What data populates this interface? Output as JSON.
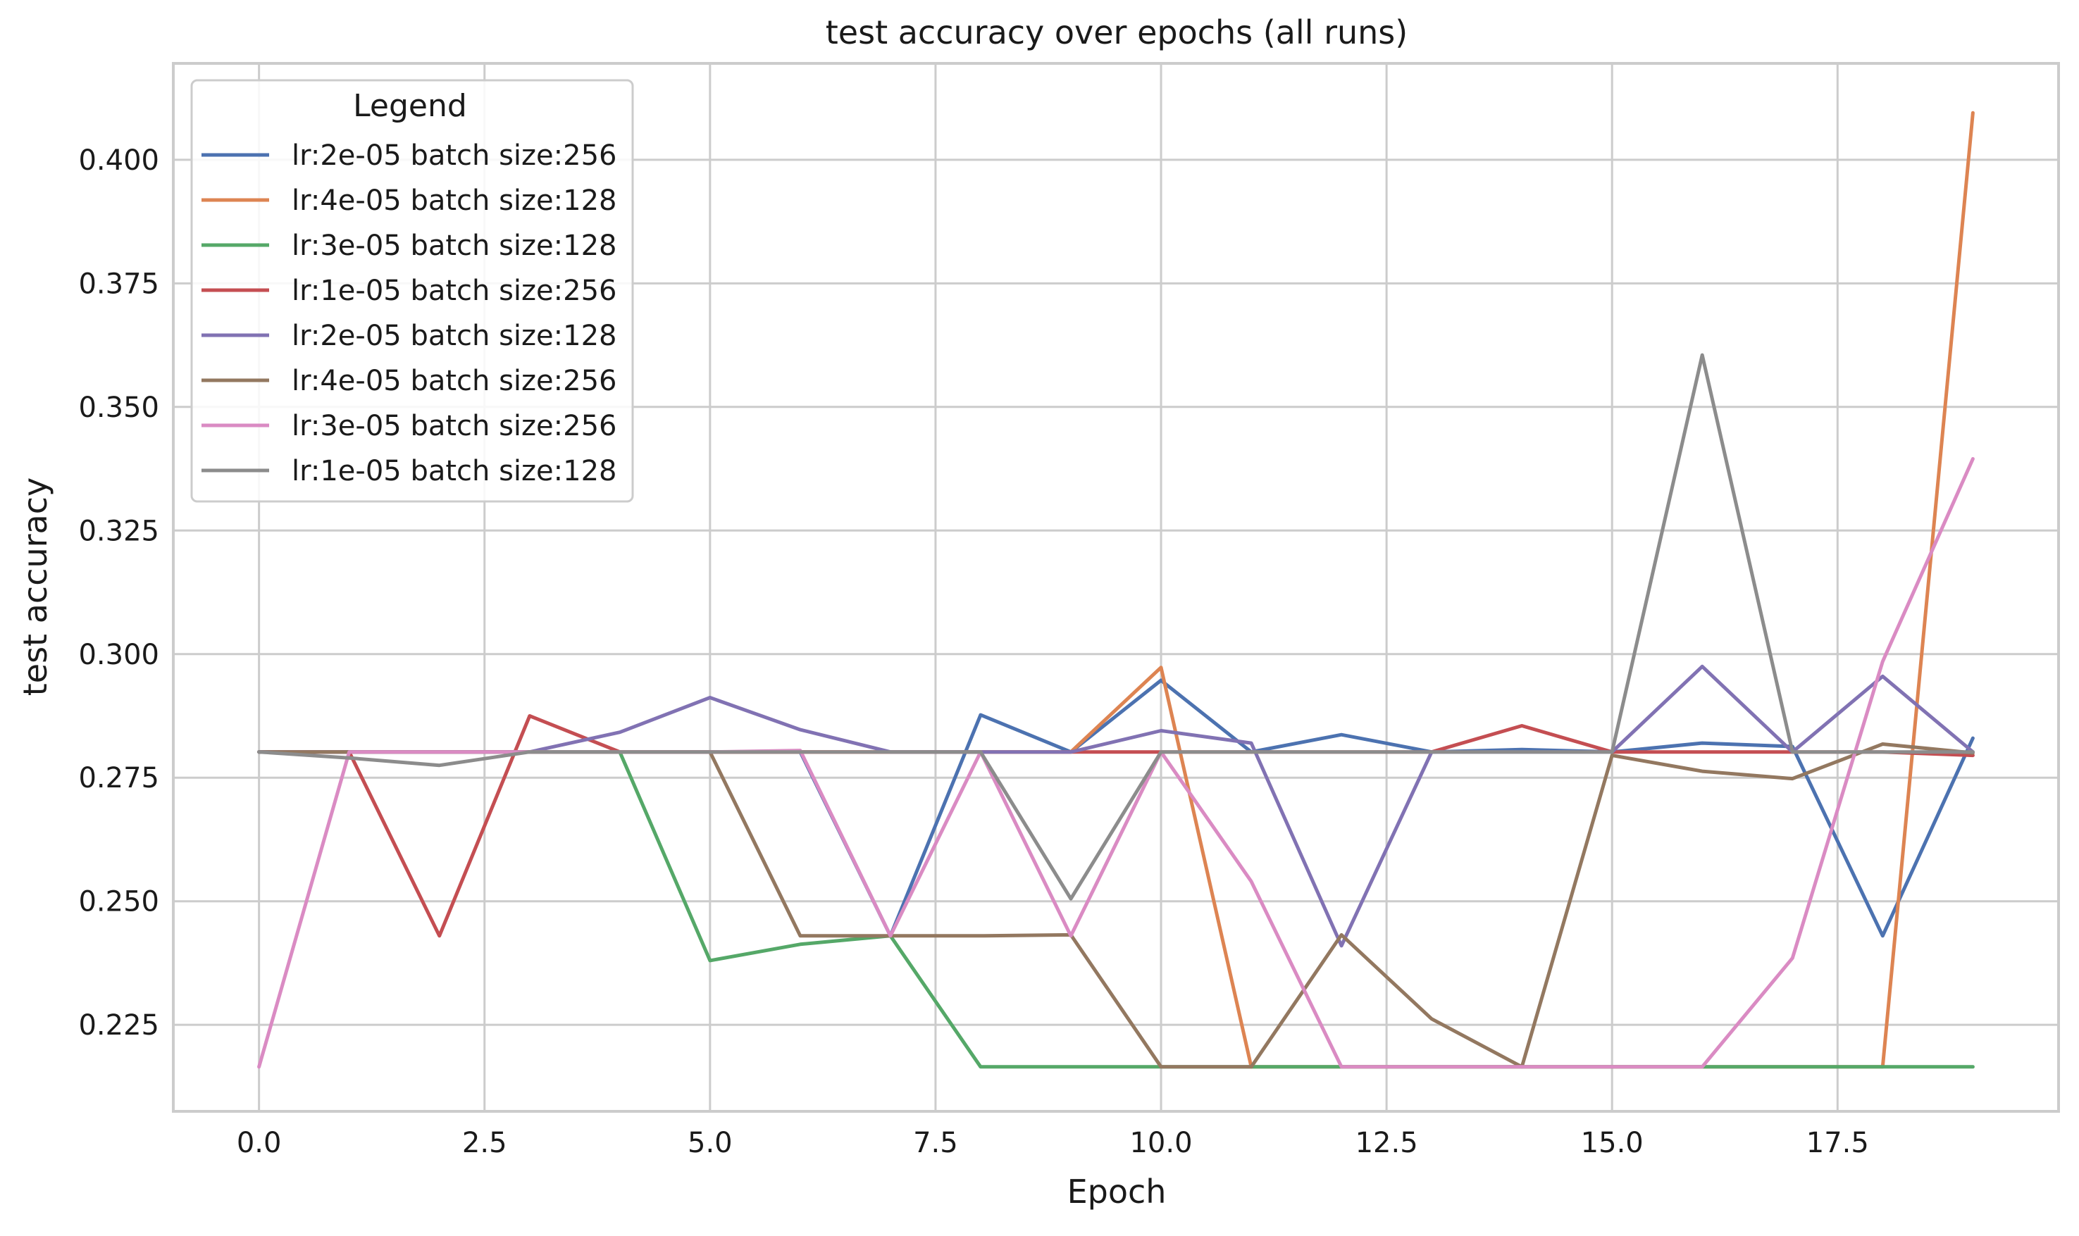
{
  "chart_data": {
    "type": "line",
    "title": "test accuracy over epochs (all runs)",
    "xlabel": "Epoch",
    "ylabel": "test accuracy",
    "xlim": [
      -0.95,
      19.95
    ],
    "ylim": [
      0.2075,
      0.4195
    ],
    "xticks": [
      0.0,
      2.5,
      5.0,
      7.5,
      10.0,
      12.5,
      15.0,
      17.5
    ],
    "xtick_labels": [
      "0.0",
      "2.5",
      "5.0",
      "7.5",
      "10.0",
      "12.5",
      "15.0",
      "17.5"
    ],
    "yticks": [
      0.225,
      0.25,
      0.275,
      0.3,
      0.325,
      0.35,
      0.375,
      0.4
    ],
    "ytick_labels": [
      "0.225",
      "0.250",
      "0.275",
      "0.300",
      "0.325",
      "0.350",
      "0.375",
      "0.400"
    ],
    "grid": true,
    "legend": {
      "title": "Legend",
      "placement": "top-left"
    },
    "x": [
      0,
      1,
      2,
      3,
      4,
      5,
      6,
      7,
      8,
      9,
      10,
      11,
      12,
      13,
      14,
      15,
      16,
      17,
      18,
      19
    ],
    "series": [
      {
        "name": "lr:2e-05 batch size:256",
        "color": "#4c72b0",
        "values": [
          0.2802,
          0.2802,
          0.2802,
          0.2802,
          0.2802,
          0.2802,
          0.2802,
          0.243,
          0.2877,
          0.2802,
          0.2947,
          0.2802,
          0.2837,
          0.2802,
          0.2807,
          0.2802,
          0.282,
          0.2813,
          0.243,
          0.283
        ]
      },
      {
        "name": "lr:4e-05 batch size:128",
        "color": "#dd8452",
        "values": [
          0.2802,
          0.2802,
          0.2802,
          0.2802,
          0.2802,
          0.2802,
          0.2802,
          0.2802,
          0.2802,
          0.2802,
          0.2973,
          0.2165,
          0.2165,
          0.2165,
          0.2165,
          0.2165,
          0.2165,
          0.2165,
          0.2165,
          0.4095
        ]
      },
      {
        "name": "lr:3e-05 batch size:128",
        "color": "#55a868",
        "values": [
          0.2802,
          0.2802,
          0.2802,
          0.2802,
          0.2802,
          0.238,
          0.2413,
          0.243,
          0.2165,
          0.2165,
          0.2165,
          0.2165,
          0.2165,
          0.2165,
          0.2165,
          0.2165,
          0.2165,
          0.2165,
          0.2165,
          0.2165
        ]
      },
      {
        "name": "lr:1e-05 batch size:256",
        "color": "#c44e52",
        "values": [
          0.2802,
          0.2802,
          0.243,
          0.2875,
          0.2802,
          0.2802,
          0.2802,
          0.2802,
          0.2802,
          0.2802,
          0.2802,
          0.2802,
          0.2802,
          0.2802,
          0.2855,
          0.2802,
          0.2802,
          0.2802,
          0.2802,
          0.2795
        ]
      },
      {
        "name": "lr:2e-05 batch size:128",
        "color": "#8172b3",
        "values": [
          0.2802,
          0.2802,
          0.2802,
          0.2802,
          0.2842,
          0.2912,
          0.2847,
          0.2802,
          0.2802,
          0.2802,
          0.2845,
          0.282,
          0.241,
          0.2802,
          0.2802,
          0.2802,
          0.2975,
          0.2802,
          0.2955,
          0.2802
        ]
      },
      {
        "name": "lr:4e-05 batch size:256",
        "color": "#937860",
        "values": [
          0.2802,
          0.2802,
          0.2802,
          0.2802,
          0.2802,
          0.2802,
          0.243,
          0.243,
          0.243,
          0.2432,
          0.2165,
          0.2165,
          0.2432,
          0.2262,
          0.2165,
          0.2795,
          0.2763,
          0.2748,
          0.2818,
          0.28
        ]
      },
      {
        "name": "lr:3e-05 batch size:256",
        "color": "#da8bc3",
        "values": [
          0.2165,
          0.2802,
          0.2802,
          0.2802,
          0.2802,
          0.2802,
          0.2805,
          0.243,
          0.2802,
          0.243,
          0.2802,
          0.254,
          0.2165,
          0.2165,
          0.2165,
          0.2165,
          0.2165,
          0.2385,
          0.2985,
          0.3395
        ]
      },
      {
        "name": "lr:1e-05 batch size:128",
        "color": "#8c8c8c",
        "values": [
          0.2802,
          0.279,
          0.2775,
          0.2802,
          0.2802,
          0.2802,
          0.2802,
          0.2802,
          0.2802,
          0.2505,
          0.2802,
          0.2802,
          0.2802,
          0.2802,
          0.2802,
          0.2802,
          0.3605,
          0.2802,
          0.2802,
          0.2802
        ]
      }
    ]
  }
}
